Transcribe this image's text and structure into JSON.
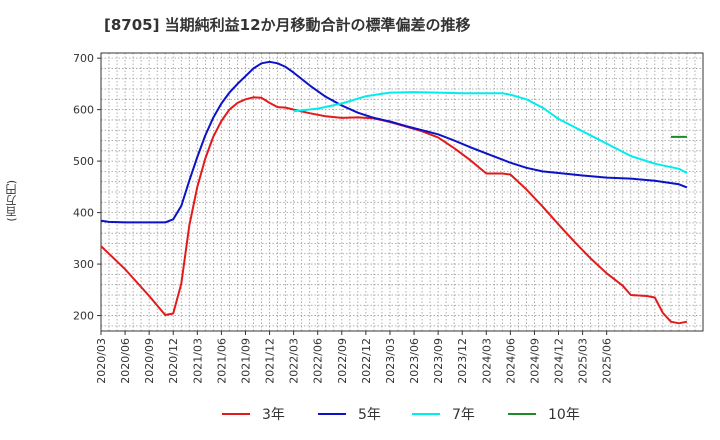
{
  "title": "[8705]  当期純利益12か月移動合計の標準偏差の推移",
  "chart_data": {
    "type": "line",
    "title": "[8705]  当期純利益12か月移動合計の標準偏差の推移",
    "ylabel": "(百万円)",
    "xlabel": "",
    "ylim": [
      170,
      710
    ],
    "yticks": [
      "200",
      "300",
      "400",
      "500",
      "600",
      "700"
    ],
    "xticks": [
      "2020/03",
      "2020/06",
      "2020/09",
      "2020/12",
      "2021/03",
      "2021/06",
      "2021/09",
      "2021/12",
      "2022/03",
      "2022/06",
      "2022/09",
      "2022/12",
      "2023/03",
      "2023/06",
      "2023/09",
      "2023/12",
      "2024/03",
      "2024/06",
      "2024/09",
      "2024/12",
      "2025/03",
      "2025/06"
    ],
    "grid": true,
    "legend_position": "bottom",
    "series": [
      {
        "name": "3年",
        "color": "#e31a1c",
        "points": [
          [
            "2020/03",
            335
          ],
          [
            "2020/06",
            290
          ],
          [
            "2020/09",
            238
          ],
          [
            "2020/11",
            201
          ],
          [
            "2020/12",
            204
          ],
          [
            "2021/01",
            262
          ],
          [
            "2021/02",
            375
          ],
          [
            "2021/03",
            450
          ],
          [
            "2021/04",
            505
          ],
          [
            "2021/05",
            548
          ],
          [
            "2021/06",
            578
          ],
          [
            "2021/07",
            600
          ],
          [
            "2021/08",
            613
          ],
          [
            "2021/09",
            620
          ],
          [
            "2021/10",
            624
          ],
          [
            "2021/11",
            623
          ],
          [
            "2021/12",
            613
          ],
          [
            "2022/01",
            605
          ],
          [
            "2022/02",
            604
          ],
          [
            "2022/03",
            600
          ],
          [
            "2022/05",
            593
          ],
          [
            "2022/07",
            587
          ],
          [
            "2022/09",
            584
          ],
          [
            "2022/11",
            585
          ],
          [
            "2023/01",
            583
          ],
          [
            "2023/03",
            576
          ],
          [
            "2023/05",
            567
          ],
          [
            "2023/07",
            558
          ],
          [
            "2023/09",
            546
          ],
          [
            "2023/11",
            525
          ],
          [
            "2024/01",
            502
          ],
          [
            "2024/03",
            476
          ],
          [
            "2024/05",
            476
          ],
          [
            "2024/06",
            474
          ],
          [
            "2024/08",
            445
          ],
          [
            "2024/10",
            412
          ],
          [
            "2024/12",
            377
          ],
          [
            "2025/02",
            343
          ],
          [
            "2025/04",
            311
          ],
          [
            "2025/06",
            282
          ],
          [
            "2025/08",
            258
          ],
          [
            "2025/09",
            240
          ],
          [
            "2025/11",
            238
          ],
          [
            "2025/12",
            235
          ],
          [
            "2026/01",
            205
          ],
          [
            "2026/02",
            188
          ],
          [
            "2026/03",
            185
          ],
          [
            "2026/04",
            188
          ]
        ]
      },
      {
        "name": "5年",
        "color": "#0b12c8",
        "points": [
          [
            "2020/03",
            384
          ],
          [
            "2020/04",
            382
          ],
          [
            "2020/06",
            381
          ],
          [
            "2020/09",
            381
          ],
          [
            "2020/11",
            381
          ],
          [
            "2020/12",
            387
          ],
          [
            "2021/01",
            413
          ],
          [
            "2021/02",
            462
          ],
          [
            "2021/03",
            508
          ],
          [
            "2021/04",
            550
          ],
          [
            "2021/05",
            585
          ],
          [
            "2021/06",
            612
          ],
          [
            "2021/07",
            633
          ],
          [
            "2021/08",
            650
          ],
          [
            "2021/09",
            665
          ],
          [
            "2021/10",
            680
          ],
          [
            "2021/11",
            690
          ],
          [
            "2021/12",
            693
          ],
          [
            "2022/01",
            690
          ],
          [
            "2022/02",
            683
          ],
          [
            "2022/03",
            672
          ],
          [
            "2022/05",
            647
          ],
          [
            "2022/07",
            625
          ],
          [
            "2022/09",
            608
          ],
          [
            "2022/11",
            594
          ],
          [
            "2023/01",
            584
          ],
          [
            "2023/03",
            577
          ],
          [
            "2023/05",
            568
          ],
          [
            "2023/07",
            560
          ],
          [
            "2023/09",
            552
          ],
          [
            "2023/11",
            540
          ],
          [
            "2024/01",
            527
          ],
          [
            "2024/03",
            515
          ],
          [
            "2024/05",
            503
          ],
          [
            "2024/06",
            497
          ],
          [
            "2024/08",
            487
          ],
          [
            "2024/10",
            480
          ],
          [
            "2024/12",
            477
          ],
          [
            "2025/03",
            472
          ],
          [
            "2025/06",
            468
          ],
          [
            "2025/09",
            466
          ],
          [
            "2025/12",
            462
          ],
          [
            "2026/03",
            455
          ],
          [
            "2026/04",
            449
          ]
        ]
      },
      {
        "name": "7年",
        "color": "#00eded",
        "points": [
          [
            "2022/03",
            597
          ],
          [
            "2022/06",
            602
          ],
          [
            "2022/09",
            612
          ],
          [
            "2022/12",
            626
          ],
          [
            "2023/03",
            633
          ],
          [
            "2023/06",
            634
          ],
          [
            "2023/09",
            633
          ],
          [
            "2023/12",
            632
          ],
          [
            "2024/03",
            632
          ],
          [
            "2024/05",
            632
          ],
          [
            "2024/06",
            629
          ],
          [
            "2024/08",
            620
          ],
          [
            "2024/10",
            604
          ],
          [
            "2024/12",
            582
          ],
          [
            "2025/03",
            558
          ],
          [
            "2025/06",
            534
          ],
          [
            "2025/09",
            510
          ],
          [
            "2025/12",
            495
          ],
          [
            "2026/03",
            485
          ],
          [
            "2026/04",
            477
          ]
        ]
      },
      {
        "name": "10年",
        "color": "#1f8a2a",
        "points": [
          [
            "2026/02",
            547
          ],
          [
            "2026/04",
            547
          ]
        ]
      }
    ]
  }
}
